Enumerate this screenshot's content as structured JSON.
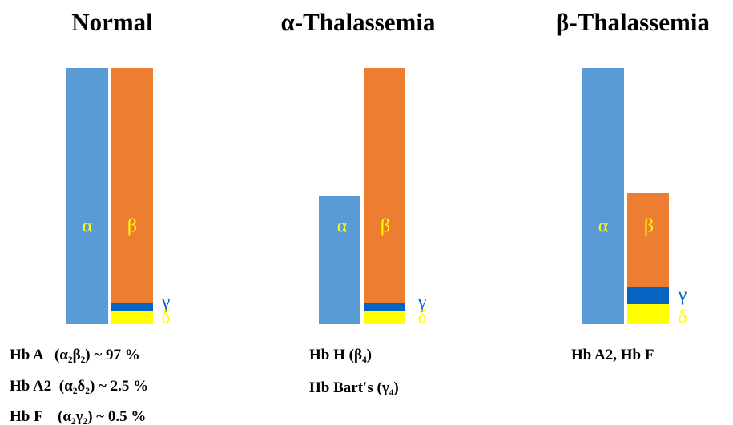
{
  "panels": [
    {
      "title": "Normal",
      "bar_labels": [
        "α",
        "β",
        "γ",
        "δ"
      ],
      "notes": [
        "Hb A   (α₂β₂) ~ 97 %",
        "Hb A2  (α₂δ₂) ~ 2.5 %",
        "Hb F    (α₂γ₂) ~ 0.5 %"
      ]
    },
    {
      "title": "α-Thalassemia",
      "bar_labels": [
        "α",
        "β",
        "γ",
        "δ"
      ],
      "notes": [
        "Hb H (β₄)",
        "Hb Bart′s (γ₄)"
      ]
    },
    {
      "title": "β-Thalassemia",
      "bar_labels": [
        "α",
        "β",
        "γ",
        "δ"
      ],
      "notes": [
        "Hb A2, Hb F"
      ]
    }
  ]
}
